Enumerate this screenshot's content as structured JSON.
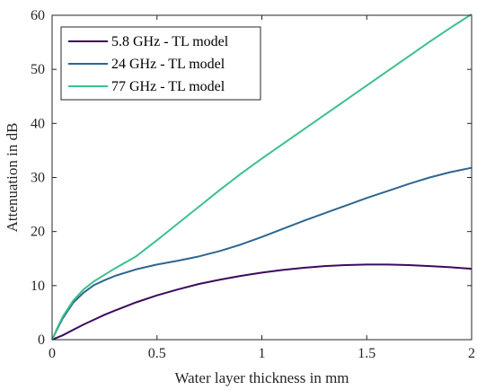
{
  "chart_data": {
    "type": "line",
    "title": "",
    "xlabel": "Water layer thickness in mm",
    "ylabel": "Attenuation in dB",
    "xlim": [
      0,
      2
    ],
    "ylim": [
      0,
      60
    ],
    "xticks": [
      0,
      0.5,
      1,
      1.5,
      2
    ],
    "xtick_labels": [
      "0",
      "0.5",
      "1",
      "1.5",
      "2"
    ],
    "yticks": [
      0,
      10,
      20,
      30,
      40,
      50,
      60
    ],
    "ytick_labels": [
      "0",
      "10",
      "20",
      "30",
      "40",
      "50",
      "60"
    ],
    "grid": false,
    "legend_position": "top-left",
    "series": [
      {
        "name": "5.8 GHz - TL model",
        "color": "#3b0a5e",
        "x": [
          0,
          0.05,
          0.1,
          0.15,
          0.2,
          0.25,
          0.3,
          0.4,
          0.5,
          0.6,
          0.7,
          0.8,
          0.9,
          1.0,
          1.1,
          1.2,
          1.3,
          1.4,
          1.5,
          1.6,
          1.7,
          1.8,
          1.9,
          2.0
        ],
        "y": [
          0,
          0.8,
          1.8,
          2.8,
          3.7,
          4.6,
          5.4,
          6.9,
          8.2,
          9.3,
          10.3,
          11.1,
          11.8,
          12.4,
          12.9,
          13.3,
          13.6,
          13.8,
          13.9,
          13.9,
          13.8,
          13.6,
          13.4,
          13.1
        ]
      },
      {
        "name": "24 GHz - TL model",
        "color": "#2f6690",
        "x": [
          0,
          0.025,
          0.05,
          0.1,
          0.15,
          0.2,
          0.25,
          0.3,
          0.4,
          0.5,
          0.6,
          0.7,
          0.8,
          0.9,
          1.0,
          1.1,
          1.2,
          1.3,
          1.4,
          1.5,
          1.6,
          1.7,
          1.8,
          1.9,
          2.0
        ],
        "y": [
          0,
          2.0,
          3.9,
          6.8,
          8.7,
          10.1,
          11.0,
          11.8,
          13.0,
          13.9,
          14.6,
          15.4,
          16.4,
          17.6,
          19.0,
          20.5,
          22.0,
          23.4,
          24.8,
          26.2,
          27.5,
          28.8,
          30.0,
          31.0,
          31.8
        ]
      },
      {
        "name": "77 GHz - TL model",
        "color": "#3cc18a",
        "x": [
          0,
          0.025,
          0.05,
          0.1,
          0.15,
          0.2,
          0.25,
          0.3,
          0.4,
          0.5,
          0.6,
          0.7,
          0.8,
          0.9,
          1.0,
          1.1,
          1.2,
          1.3,
          1.4,
          1.5,
          1.6,
          1.7,
          1.8,
          1.9,
          2.0
        ],
        "y": [
          0,
          2.2,
          4.2,
          7.2,
          9.3,
          10.8,
          12.0,
          13.2,
          15.4,
          18.4,
          21.5,
          24.6,
          27.7,
          30.7,
          33.5,
          36.2,
          38.9,
          41.6,
          44.3,
          47.0,
          49.7,
          52.4,
          55.1,
          57.7,
          60.2
        ]
      }
    ]
  }
}
